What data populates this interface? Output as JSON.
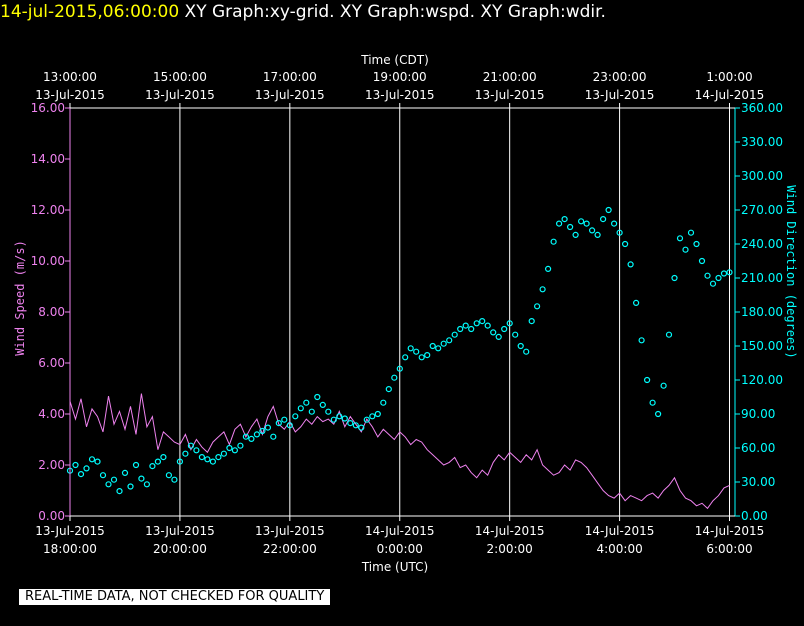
{
  "header": {
    "timestamp": "14-jul-2015,06:00:00",
    "titles": [
      "XY Graph:xy-grid.",
      "XY Graph:wspd.",
      "XY Graph:wdir."
    ]
  },
  "footer": {
    "text": "REAL-TIME DATA, NOT CHECKED FOR QUALITY"
  },
  "colors": {
    "background": "#000000",
    "grid": "#ffffff",
    "speed": "#ee82ee",
    "direction": "#00ffff",
    "header_timestamp": "#ffff00"
  },
  "chart_data": {
    "type": "scatter",
    "title": "",
    "x_bottom": {
      "label": "Time (UTC)",
      "range_hours": [
        18,
        30.1
      ],
      "ticks": [
        {
          "at": 18,
          "date": "13-Jul-2015",
          "time": "18:00:00"
        },
        {
          "at": 20,
          "date": "13-Jul-2015",
          "time": "20:00:00"
        },
        {
          "at": 22,
          "date": "13-Jul-2015",
          "time": "22:00:00"
        },
        {
          "at": 24,
          "date": "14-Jul-2015",
          "time": "0:00:00"
        },
        {
          "at": 26,
          "date": "14-Jul-2015",
          "time": "2:00:00"
        },
        {
          "at": 28,
          "date": "14-Jul-2015",
          "time": "4:00:00"
        },
        {
          "at": 30,
          "date": "14-Jul-2015",
          "time": "6:00:00"
        }
      ]
    },
    "x_top": {
      "label": "Time (CDT)",
      "ticks": [
        {
          "at": 18,
          "time": "13:00:00",
          "date": "13-Jul-2015"
        },
        {
          "at": 20,
          "time": "15:00:00",
          "date": "13-Jul-2015"
        },
        {
          "at": 22,
          "time": "17:00:00",
          "date": "13-Jul-2015"
        },
        {
          "at": 24,
          "time": "19:00:00",
          "date": "13-Jul-2015"
        },
        {
          "at": 26,
          "time": "21:00:00",
          "date": "13-Jul-2015"
        },
        {
          "at": 28,
          "time": "23:00:00",
          "date": "13-Jul-2015"
        },
        {
          "at": 30,
          "time": "1:00:00",
          "date": "14-Jul-2015"
        }
      ]
    },
    "y_left": {
      "label": "Wind Speed (m/s)",
      "range": [
        0,
        16
      ],
      "ticks": [
        "0.00",
        "2.00",
        "4.00",
        "6.00",
        "8.00",
        "10.00",
        "12.00",
        "14.00",
        "16.00"
      ]
    },
    "y_right": {
      "label": "Wind Direction (degrees)",
      "range": [
        0,
        360
      ],
      "ticks": [
        "0.00",
        "30.00",
        "60.00",
        "90.00",
        "120.00",
        "150.00",
        "180.00",
        "210.00",
        "240.00",
        "270.00",
        "300.00",
        "330.00",
        "360.00"
      ]
    },
    "grid": "vertical at major time ticks",
    "series": [
      {
        "kind": "line",
        "axis": "left",
        "x_hours": [
          18.0,
          18.1,
          18.2,
          18.3,
          18.4,
          18.5,
          18.6,
          18.7,
          18.8,
          18.9,
          19.0,
          19.1,
          19.2,
          19.3,
          19.4,
          19.5,
          19.6,
          19.7,
          19.8,
          19.9,
          20.0,
          20.1,
          20.2,
          20.3,
          20.4,
          20.5,
          20.6,
          20.7,
          20.8,
          20.9,
          21.0,
          21.1,
          21.2,
          21.3,
          21.4,
          21.5,
          21.6,
          21.7,
          21.8,
          21.9,
          22.0,
          22.1,
          22.2,
          22.3,
          22.4,
          22.5,
          22.6,
          22.7,
          22.8,
          22.9,
          23.0,
          23.1,
          23.2,
          23.3,
          23.4,
          23.5,
          23.6,
          23.7,
          23.8,
          23.9,
          24.0,
          24.1,
          24.2,
          24.3,
          24.4,
          24.5,
          24.6,
          24.7,
          24.8,
          24.9,
          25.0,
          25.1,
          25.2,
          25.3,
          25.4,
          25.5,
          25.6,
          25.7,
          25.8,
          25.9,
          26.0,
          26.1,
          26.2,
          26.3,
          26.4,
          26.5,
          26.6,
          26.7,
          26.8,
          26.9,
          27.0,
          27.1,
          27.2,
          27.3,
          27.4,
          27.5,
          27.6,
          27.7,
          27.8,
          27.9,
          28.0,
          28.1,
          28.2,
          28.3,
          28.4,
          28.5,
          28.6,
          28.7,
          28.8,
          28.9,
          29.0,
          29.1,
          29.2,
          29.3,
          29.4,
          29.5,
          29.6,
          29.7,
          29.8,
          29.9,
          30.0
        ],
        "values": [
          4.5,
          3.8,
          4.6,
          3.5,
          4.2,
          3.9,
          3.3,
          4.7,
          3.6,
          4.1,
          3.4,
          4.3,
          3.2,
          4.8,
          3.5,
          3.9,
          2.6,
          3.3,
          3.1,
          2.9,
          2.8,
          3.2,
          2.6,
          3.0,
          2.7,
          2.5,
          2.9,
          3.1,
          3.3,
          2.8,
          3.4,
          3.6,
          3.1,
          3.5,
          3.8,
          3.2,
          3.9,
          4.3,
          3.6,
          3.4,
          3.7,
          3.3,
          3.5,
          3.8,
          3.6,
          3.9,
          3.7,
          3.8,
          3.6,
          4.1,
          3.5,
          3.9,
          3.6,
          3.3,
          3.8,
          3.5,
          3.1,
          3.4,
          3.2,
          3.0,
          3.3,
          3.1,
          2.8,
          3.0,
          2.9,
          2.6,
          2.4,
          2.2,
          2.0,
          2.1,
          2.3,
          1.9,
          2.0,
          1.7,
          1.5,
          1.8,
          1.6,
          2.1,
          2.4,
          2.2,
          2.5,
          2.3,
          2.1,
          2.4,
          2.2,
          2.6,
          2.0,
          1.8,
          1.6,
          1.7,
          2.0,
          1.8,
          2.2,
          2.1,
          1.9,
          1.6,
          1.3,
          1.0,
          0.8,
          0.7,
          0.9,
          0.6,
          0.8,
          0.7,
          0.6,
          0.8,
          0.9,
          0.7,
          1.0,
          1.2,
          1.5,
          1.0,
          0.7,
          0.6,
          0.4,
          0.5,
          0.3,
          0.6,
          0.8,
          1.1,
          1.2
        ]
      },
      {
        "kind": "scatter",
        "axis": "right",
        "x_hours": [
          18.0,
          18.1,
          18.2,
          18.3,
          18.4,
          18.5,
          18.6,
          18.7,
          18.8,
          18.9,
          19.0,
          19.1,
          19.2,
          19.3,
          19.4,
          19.5,
          19.6,
          19.7,
          19.8,
          19.9,
          20.0,
          20.1,
          20.2,
          20.3,
          20.4,
          20.5,
          20.6,
          20.7,
          20.8,
          20.9,
          21.0,
          21.1,
          21.2,
          21.3,
          21.4,
          21.5,
          21.6,
          21.7,
          21.8,
          21.9,
          22.0,
          22.1,
          22.2,
          22.3,
          22.4,
          22.5,
          22.6,
          22.7,
          22.8,
          22.9,
          23.0,
          23.1,
          23.2,
          23.3,
          23.4,
          23.5,
          23.6,
          23.7,
          23.8,
          23.9,
          24.0,
          24.1,
          24.2,
          24.3,
          24.4,
          24.5,
          24.6,
          24.7,
          24.8,
          24.9,
          25.0,
          25.1,
          25.2,
          25.3,
          25.4,
          25.5,
          25.6,
          25.7,
          25.8,
          25.9,
          26.0,
          26.1,
          26.2,
          26.3,
          26.4,
          26.5,
          26.6,
          26.7,
          26.8,
          26.9,
          27.0,
          27.1,
          27.2,
          27.3,
          27.4,
          27.5,
          27.6,
          27.7,
          27.8,
          27.9,
          28.0,
          28.1,
          28.2,
          28.3,
          28.4,
          28.5,
          28.6,
          28.7,
          28.8,
          28.9,
          29.0,
          29.1,
          29.2,
          29.3,
          29.4,
          29.5,
          29.6,
          29.7,
          29.8,
          29.9,
          30.0
        ],
        "values": [
          40,
          45,
          37,
          42,
          50,
          48,
          36,
          28,
          32,
          22,
          38,
          26,
          45,
          33,
          28,
          44,
          48,
          52,
          36,
          32,
          48,
          55,
          62,
          58,
          52,
          50,
          48,
          52,
          55,
          60,
          58,
          62,
          70,
          68,
          72,
          75,
          78,
          70,
          82,
          85,
          80,
          88,
          95,
          100,
          92,
          105,
          98,
          92,
          85,
          88,
          86,
          82,
          80,
          78,
          85,
          88,
          90,
          100,
          112,
          122,
          130,
          140,
          148,
          145,
          140,
          142,
          150,
          148,
          152,
          155,
          160,
          165,
          168,
          165,
          170,
          172,
          168,
          162,
          158,
          165,
          170,
          160,
          150,
          145,
          172,
          185,
          200,
          218,
          242,
          258,
          262,
          255,
          248,
          260,
          258,
          252,
          248,
          262,
          270,
          258,
          250,
          240,
          222,
          188,
          155,
          120,
          100,
          90,
          115,
          160,
          210,
          245,
          235,
          250,
          240,
          225,
          212,
          205,
          210,
          214,
          215
        ]
      }
    ]
  }
}
